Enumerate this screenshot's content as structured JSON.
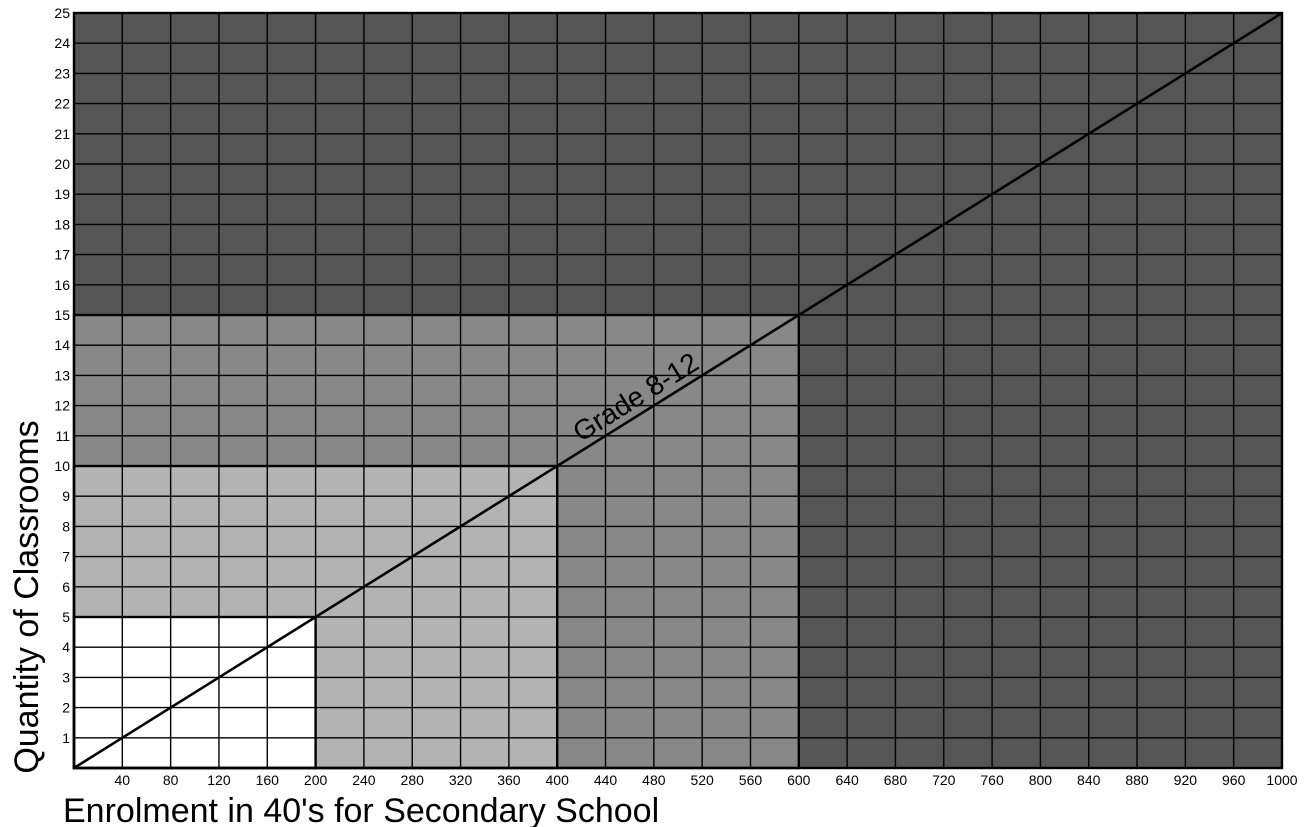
{
  "chart_data": {
    "type": "line",
    "xlabel": "Enrolment in 40's for Secondary School",
    "ylabel": "Quantity of Classrooms",
    "xlim": [
      0,
      1000
    ],
    "ylim": [
      0,
      25
    ],
    "x_ticks": [
      40,
      80,
      120,
      160,
      200,
      240,
      280,
      320,
      360,
      400,
      440,
      480,
      520,
      560,
      600,
      640,
      680,
      720,
      760,
      800,
      840,
      880,
      920,
      960,
      1000
    ],
    "y_ticks": [
      1,
      2,
      3,
      4,
      5,
      6,
      7,
      8,
      9,
      10,
      11,
      12,
      13,
      14,
      15,
      16,
      17,
      18,
      19,
      20,
      21,
      22,
      23,
      24,
      25
    ],
    "grid": true,
    "series": [
      {
        "name": "Grade 8-12",
        "x": [
          0,
          1000
        ],
        "y": [
          0,
          25
        ]
      }
    ],
    "annotations": [
      {
        "text": "Grade 8-12",
        "x": 520,
        "y": 13
      }
    ],
    "bands": [
      {
        "x_max": 1000,
        "y_max": 25,
        "color": "#555555"
      },
      {
        "x_max": 600,
        "y_max": 15,
        "color": "#888888"
      },
      {
        "x_max": 400,
        "y_max": 10,
        "color": "#b3b3b3"
      },
      {
        "x_max": 200,
        "y_max": 5,
        "color": "#ffffff"
      }
    ],
    "colors": {
      "grid": "#000000",
      "line": "#000000"
    }
  }
}
